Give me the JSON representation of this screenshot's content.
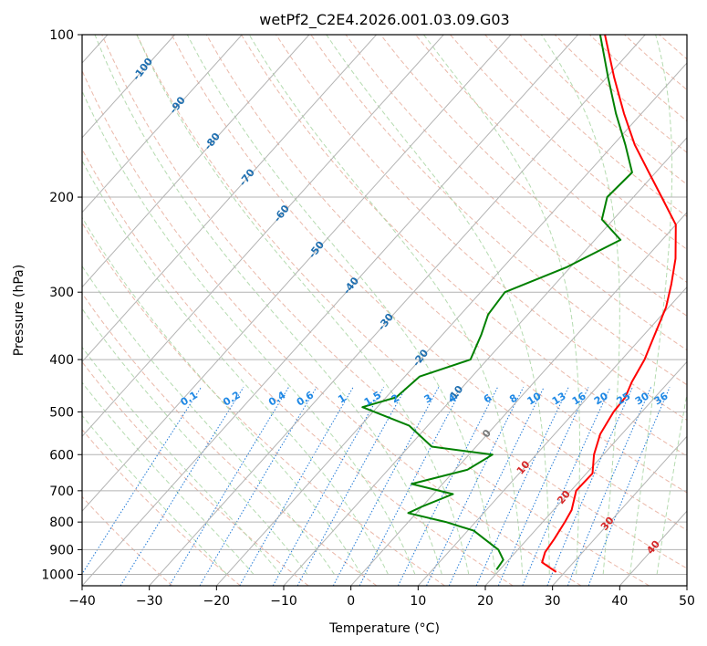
{
  "chart_data": {
    "type": "line",
    "title": "wetPf2_C2E4.2026.001.03.09.G03",
    "xlabel": "Temperature (°C)",
    "ylabel": "Pressure (hPa)",
    "xlim": [
      -40,
      50
    ],
    "ylim": [
      1050,
      100
    ],
    "y_scale": "log",
    "grid": true,
    "x_ticks": [
      "−40",
      "−30",
      "−20",
      "−10",
      "0",
      "10",
      "20",
      "30",
      "40",
      "50"
    ],
    "y_ticks": [
      "100",
      "200",
      "300",
      "400",
      "500",
      "600",
      "700",
      "800",
      "900",
      "1000"
    ],
    "dry_adiabat_labels": [
      "-100",
      "-90",
      "-80",
      "-70",
      "-60",
      "-50",
      "-40",
      "-30",
      "-20",
      "-10"
    ],
    "moist_adiabat_labels": [
      "0",
      "10",
      "20",
      "30",
      "40"
    ],
    "mixing_ratio_labels": [
      "0.1",
      "0.2",
      "0.4",
      "0.6",
      "1",
      "1.5",
      "2",
      "3",
      "4",
      "6",
      "8",
      "10",
      "13",
      "16",
      "20",
      "25",
      "30",
      "36"
    ],
    "series": [
      {
        "color": "#ff0000",
        "points": [
          [
            28.7,
            990
          ],
          [
            25.3,
            950
          ],
          [
            24.4,
            910
          ],
          [
            24,
            860
          ],
          [
            23.3,
            800
          ],
          [
            22.7,
            760
          ],
          [
            20.8,
            700
          ],
          [
            20.9,
            650
          ],
          [
            18.6,
            600
          ],
          [
            16.8,
            550
          ],
          [
            15.8,
            500
          ],
          [
            15.6,
            470
          ],
          [
            14.5,
            440
          ],
          [
            13.4,
            400
          ],
          [
            11.6,
            360
          ],
          [
            9.6,
            320
          ],
          [
            7.3,
            290
          ],
          [
            4.5,
            260
          ],
          [
            0,
            225
          ],
          [
            -5.8,
            200
          ],
          [
            -11,
            180
          ],
          [
            -16.8,
            160
          ],
          [
            -22.6,
            140
          ],
          [
            -28.9,
            120
          ],
          [
            -36,
            100
          ]
        ]
      },
      {
        "color": "#008000",
        "points": [
          [
            19.5,
            980
          ],
          [
            19.2,
            940
          ],
          [
            17.1,
            900
          ],
          [
            13.6,
            860
          ],
          [
            10.9,
            830
          ],
          [
            5.6,
            800
          ],
          [
            -1.2,
            770
          ],
          [
            -0.1,
            750
          ],
          [
            2.9,
            710
          ],
          [
            -4.6,
            680
          ],
          [
            1.8,
            640
          ],
          [
            3.5,
            600
          ],
          [
            -6.6,
            580
          ],
          [
            -12.8,
            530
          ],
          [
            -22.2,
            490
          ],
          [
            -18.5,
            470
          ],
          [
            -17.8,
            430
          ],
          [
            -12.5,
            400
          ],
          [
            -14.2,
            360
          ],
          [
            -15.9,
            330
          ],
          [
            -16.4,
            300
          ],
          [
            -10.6,
            270
          ],
          [
            -6.2,
            240
          ],
          [
            -11.7,
            220
          ],
          [
            -13.9,
            200
          ],
          [
            -13.5,
            180
          ],
          [
            -18.2,
            160
          ],
          [
            -23.8,
            140
          ],
          [
            -29.8,
            120
          ],
          [
            -36.7,
            100
          ]
        ]
      }
    ]
  }
}
